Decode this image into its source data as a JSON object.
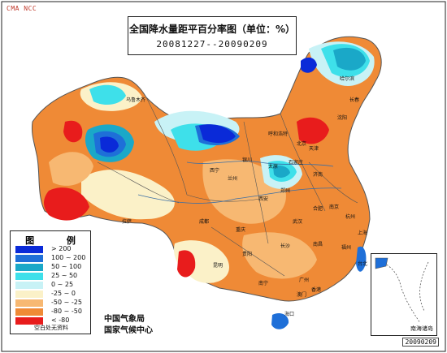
{
  "watermark": "CMA NCC",
  "title": "全国降水量距平百分率图（单位：%）",
  "date_range": "20081227--20090209",
  "legend": {
    "title": "图 例",
    "items": [
      {
        "label": "> 200",
        "color": "#0a2ad8"
      },
      {
        "label": "100 ~ 200",
        "color": "#1e6fd8"
      },
      {
        "label": "50 ~ 100",
        "color": "#1aa8c8"
      },
      {
        "label": "25 ~ 50",
        "color": "#3ee0ea"
      },
      {
        "label": "0 ~ 25",
        "color": "#c8f2f6"
      },
      {
        "label": "-25 ~ 0",
        "color": "#fbf1c8"
      },
      {
        "label": "-50 ~ -25",
        "color": "#f7b872"
      },
      {
        "label": "-80 ~ -50",
        "color": "#ef8a36"
      },
      {
        "label": "< -80",
        "color": "#e81c1c"
      }
    ],
    "note": "空白处无资料"
  },
  "agency": [
    "中国气象局",
    "国家气候中心"
  ],
  "inset_label": "南海诸岛",
  "date_stamp": "20090209",
  "cities": [
    "乌鲁木齐",
    "拉萨",
    "西宁",
    "兰州",
    "成都",
    "重庆",
    "昆明",
    "贵阳",
    "南宁",
    "广州",
    "海口",
    "长沙",
    "武汉",
    "南昌",
    "福州",
    "杭州",
    "南京",
    "合肥",
    "郑州",
    "济南",
    "石家庄",
    "太原",
    "北京",
    "天津",
    "沈阳",
    "长春",
    "哈尔滨",
    "呼和浩特",
    "银川",
    "西安",
    "上海",
    "台北",
    "香港",
    "澳门"
  ]
}
